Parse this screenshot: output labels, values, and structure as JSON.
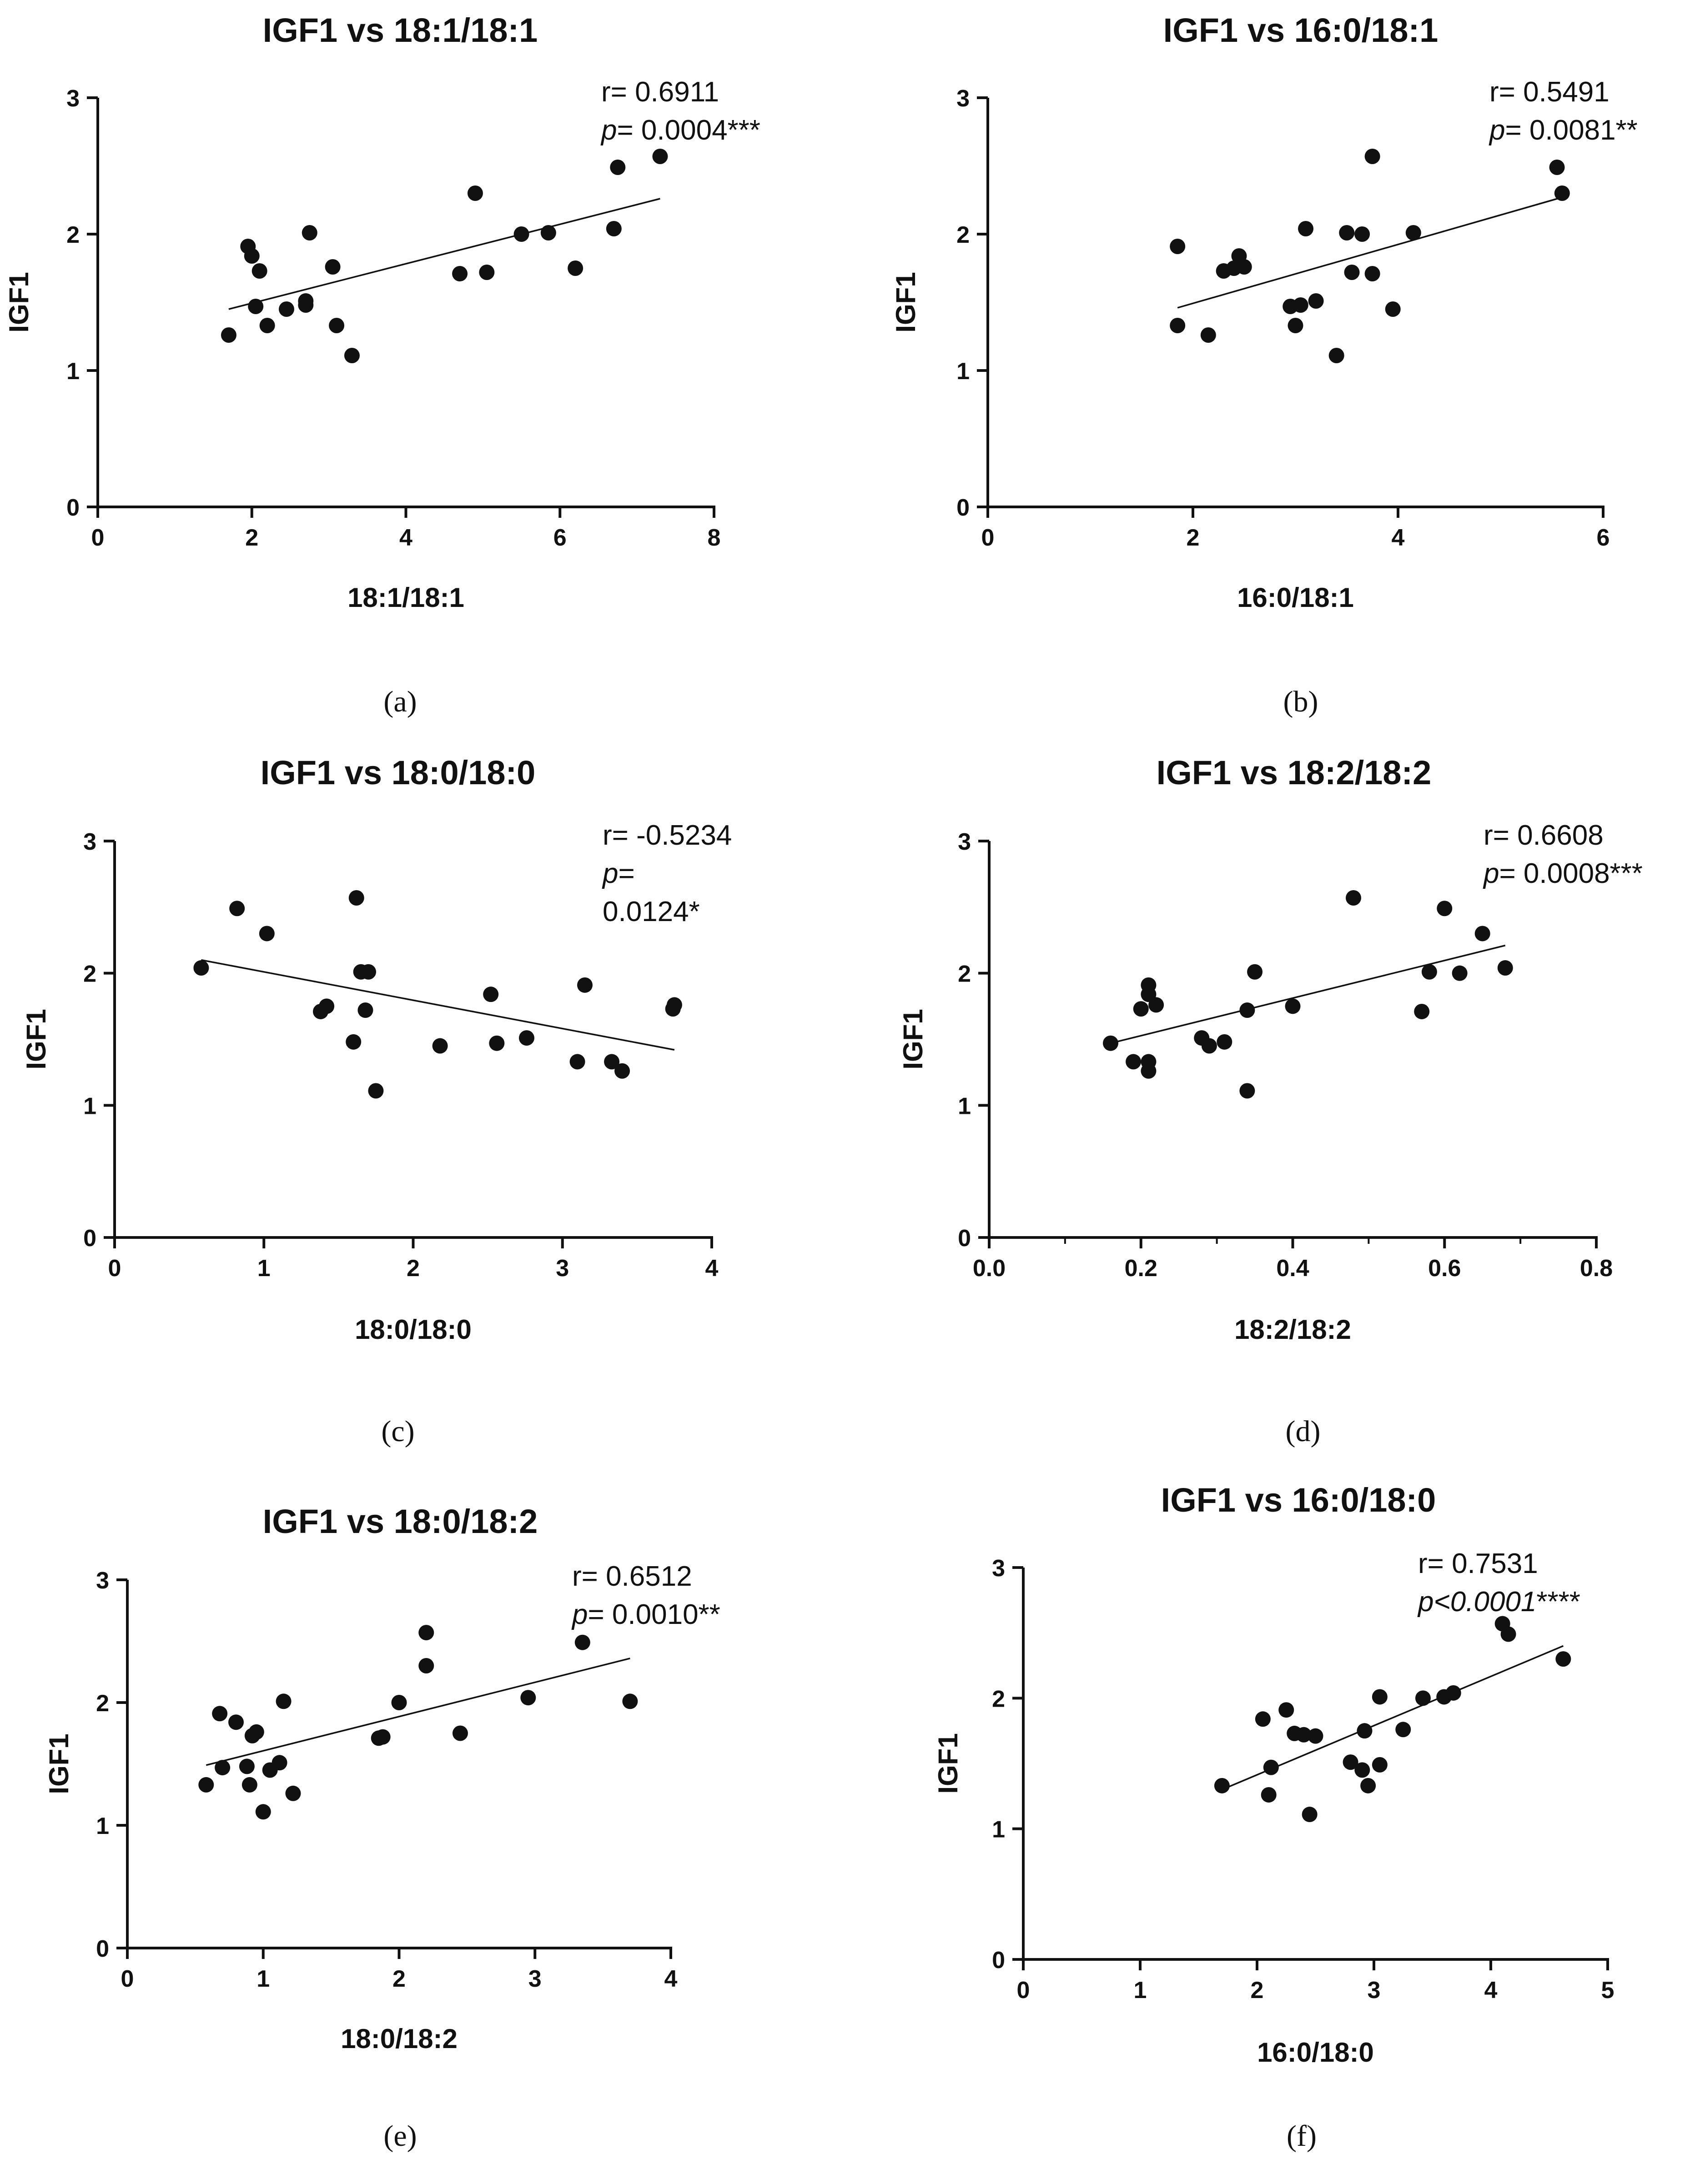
{
  "chart_data": [
    {
      "id": "a",
      "type": "scatter",
      "title": "IGF1 vs 18:1/18:1",
      "xlabel": "18:1/18:1",
      "ylabel": "IGF1",
      "caption": "(a)",
      "xlim": [
        0,
        8
      ],
      "ylim": [
        0,
        3
      ],
      "xticks": [
        "0",
        "2",
        "4",
        "6",
        "8"
      ],
      "yticks": [
        "0",
        "1",
        "2",
        "3"
      ],
      "annotation": {
        "r": "r= 0.6911",
        "p_label": "p",
        "p_value": "= 0.0004***"
      },
      "fit": {
        "x": [
          1.7,
          7.3
        ],
        "y": [
          1.45,
          2.26
        ]
      },
      "points": [
        [
          1.7,
          1.26
        ],
        [
          1.95,
          1.91
        ],
        [
          2.0,
          1.84
        ],
        [
          2.05,
          1.47
        ],
        [
          2.1,
          1.73
        ],
        [
          2.2,
          1.33
        ],
        [
          2.45,
          1.45
        ],
        [
          2.7,
          1.48
        ],
        [
          2.7,
          1.51
        ],
        [
          2.75,
          2.01
        ],
        [
          3.05,
          1.76
        ],
        [
          3.1,
          1.33
        ],
        [
          3.3,
          1.11
        ],
        [
          4.7,
          1.71
        ],
        [
          4.9,
          2.3
        ],
        [
          5.05,
          1.72
        ],
        [
          5.5,
          2.0
        ],
        [
          5.85,
          2.01
        ],
        [
          6.2,
          1.75
        ],
        [
          6.7,
          2.04
        ],
        [
          6.75,
          2.49
        ],
        [
          7.3,
          2.57
        ]
      ]
    },
    {
      "id": "b",
      "type": "scatter",
      "title": "IGF1 vs 16:0/18:1",
      "xlabel": "16:0/18:1",
      "ylabel": "IGF1",
      "caption": "(b)",
      "xlim": [
        0,
        6
      ],
      "ylim": [
        0,
        3
      ],
      "xticks": [
        "0",
        "2",
        "4",
        "6"
      ],
      "yticks": [
        "0",
        "1",
        "2",
        "3"
      ],
      "annotation": {
        "r": "r= 0.5491",
        "p_label": "p",
        "p_value": "= 0.0081**"
      },
      "fit": {
        "x": [
          1.85,
          5.6
        ],
        "y": [
          1.46,
          2.27
        ]
      },
      "points": [
        [
          1.85,
          1.91
        ],
        [
          1.85,
          1.33
        ],
        [
          2.15,
          1.26
        ],
        [
          2.3,
          1.73
        ],
        [
          2.4,
          1.75
        ],
        [
          2.45,
          1.84
        ],
        [
          2.5,
          1.76
        ],
        [
          2.95,
          1.47
        ],
        [
          3.0,
          1.33
        ],
        [
          3.05,
          1.48
        ],
        [
          3.1,
          2.04
        ],
        [
          3.2,
          1.51
        ],
        [
          3.4,
          1.11
        ],
        [
          3.5,
          2.01
        ],
        [
          3.55,
          1.72
        ],
        [
          3.65,
          2.0
        ],
        [
          3.75,
          2.57
        ],
        [
          3.75,
          1.71
        ],
        [
          3.95,
          1.45
        ],
        [
          4.15,
          2.01
        ],
        [
          5.55,
          2.49
        ],
        [
          5.6,
          2.3
        ]
      ]
    },
    {
      "id": "c",
      "type": "scatter",
      "title": "IGF1 vs 18:0/18:0",
      "xlabel": "18:0/18:0",
      "ylabel": "IGF1",
      "caption": "(c)",
      "xlim": [
        0,
        4
      ],
      "ylim": [
        0,
        3
      ],
      "xticks": [
        "0",
        "1",
        "2",
        "3",
        "4"
      ],
      "yticks": [
        "0",
        "1",
        "2",
        "3"
      ],
      "annotation": {
        "r": "r= -0.5234",
        "p_label": "p",
        "p_value": "=",
        "p_value2": "0.0124*"
      },
      "fit": {
        "x": [
          0.58,
          3.75
        ],
        "y": [
          2.1,
          1.42
        ]
      },
      "points": [
        [
          0.58,
          2.04
        ],
        [
          0.82,
          2.49
        ],
        [
          1.02,
          2.3
        ],
        [
          1.38,
          1.71
        ],
        [
          1.42,
          1.75
        ],
        [
          1.6,
          1.48
        ],
        [
          1.62,
          2.57
        ],
        [
          1.65,
          2.01
        ],
        [
          1.68,
          1.72
        ],
        [
          1.7,
          2.01
        ],
        [
          1.75,
          1.11
        ],
        [
          2.18,
          1.45
        ],
        [
          2.52,
          1.84
        ],
        [
          2.56,
          1.47
        ],
        [
          2.76,
          1.51
        ],
        [
          3.1,
          1.33
        ],
        [
          3.15,
          1.91
        ],
        [
          3.33,
          1.33
        ],
        [
          3.4,
          1.26
        ],
        [
          3.74,
          1.73
        ],
        [
          3.75,
          1.76
        ]
      ]
    },
    {
      "id": "d",
      "type": "scatter",
      "title": "IGF1 vs 18:2/18:2",
      "xlabel": "18:2/18:2",
      "ylabel": "IGF1",
      "caption": "(d)",
      "xlim": [
        0,
        0.8
      ],
      "ylim": [
        0,
        3
      ],
      "xticks": [
        "0.0",
        "0.2",
        "0.4",
        "0.6",
        "0.8"
      ],
      "yticks": [
        "0",
        "1",
        "2",
        "3"
      ],
      "minor_x": true,
      "annotation": {
        "r": "r= 0.6608",
        "p_label": "p",
        "p_value": "= 0.0008***"
      },
      "fit": {
        "x": [
          0.16,
          0.68
        ],
        "y": [
          1.47,
          2.21
        ]
      },
      "points": [
        [
          0.16,
          1.47
        ],
        [
          0.19,
          1.33
        ],
        [
          0.2,
          1.73
        ],
        [
          0.21,
          1.91
        ],
        [
          0.21,
          1.84
        ],
        [
          0.21,
          1.33
        ],
        [
          0.21,
          1.26
        ],
        [
          0.22,
          1.76
        ],
        [
          0.28,
          1.51
        ],
        [
          0.29,
          1.45
        ],
        [
          0.31,
          1.48
        ],
        [
          0.34,
          1.72
        ],
        [
          0.34,
          1.11
        ],
        [
          0.35,
          2.01
        ],
        [
          0.4,
          1.75
        ],
        [
          0.48,
          2.57
        ],
        [
          0.57,
          1.71
        ],
        [
          0.58,
          2.01
        ],
        [
          0.6,
          2.49
        ],
        [
          0.62,
          2.0
        ],
        [
          0.65,
          2.3
        ],
        [
          0.68,
          2.04
        ]
      ]
    },
    {
      "id": "e",
      "type": "scatter",
      "title": "IGF1 vs 18:0/18:2",
      "xlabel": "18:0/18:2",
      "ylabel": "IGF1",
      "caption": "(e)",
      "xlim": [
        0,
        4
      ],
      "ylim": [
        0,
        3
      ],
      "xticks": [
        "0",
        "1",
        "2",
        "3",
        "4"
      ],
      "yticks": [
        "0",
        "1",
        "2",
        "3"
      ],
      "annotation": {
        "r": "r= 0.6512",
        "p_label": "p",
        "p_value": "= 0.0010**"
      },
      "fit": {
        "x": [
          0.58,
          3.7
        ],
        "y": [
          1.49,
          2.36
        ]
      },
      "points": [
        [
          0.58,
          1.33
        ],
        [
          0.68,
          1.91
        ],
        [
          0.7,
          1.47
        ],
        [
          0.8,
          1.84
        ],
        [
          0.88,
          1.48
        ],
        [
          0.9,
          1.33
        ],
        [
          0.92,
          1.73
        ],
        [
          0.95,
          1.76
        ],
        [
          1.0,
          1.11
        ],
        [
          1.05,
          1.45
        ],
        [
          1.12,
          1.51
        ],
        [
          1.15,
          2.01
        ],
        [
          1.22,
          1.26
        ],
        [
          1.85,
          1.71
        ],
        [
          1.88,
          1.72
        ],
        [
          2.0,
          2.0
        ],
        [
          2.2,
          2.57
        ],
        [
          2.2,
          2.3
        ],
        [
          2.45,
          1.75
        ],
        [
          2.95,
          2.04
        ],
        [
          3.35,
          2.49
        ],
        [
          3.7,
          2.01
        ]
      ]
    },
    {
      "id": "f",
      "type": "scatter",
      "title": "IGF1 vs 16:0/18:0",
      "xlabel": "16:0/18:0",
      "ylabel": "IGF1",
      "caption": "(f)",
      "xlim": [
        0,
        5
      ],
      "ylim": [
        0,
        3
      ],
      "xticks": [
        "0",
        "1",
        "2",
        "3",
        "4",
        "5"
      ],
      "yticks": [
        "0",
        "1",
        "2",
        "3"
      ],
      "annotation": {
        "r": "r= 0.7531",
        "p_label": "p<0.0001",
        "p_value": "****"
      },
      "fit": {
        "x": [
          1.7,
          4.62
        ],
        "y": [
          1.3,
          2.4
        ]
      },
      "points": [
        [
          1.7,
          1.33
        ],
        [
          2.05,
          1.84
        ],
        [
          2.1,
          1.26
        ],
        [
          2.12,
          1.47
        ],
        [
          2.25,
          1.91
        ],
        [
          2.32,
          1.73
        ],
        [
          2.4,
          1.72
        ],
        [
          2.45,
          1.11
        ],
        [
          2.5,
          1.71
        ],
        [
          2.8,
          1.51
        ],
        [
          2.9,
          1.45
        ],
        [
          2.92,
          1.75
        ],
        [
          2.95,
          1.33
        ],
        [
          3.05,
          2.01
        ],
        [
          3.05,
          1.49
        ],
        [
          3.25,
          1.76
        ],
        [
          3.42,
          2.0
        ],
        [
          3.6,
          2.01
        ],
        [
          3.68,
          2.04
        ],
        [
          4.1,
          2.57
        ],
        [
          4.15,
          2.49
        ],
        [
          4.62,
          2.3
        ]
      ]
    }
  ]
}
